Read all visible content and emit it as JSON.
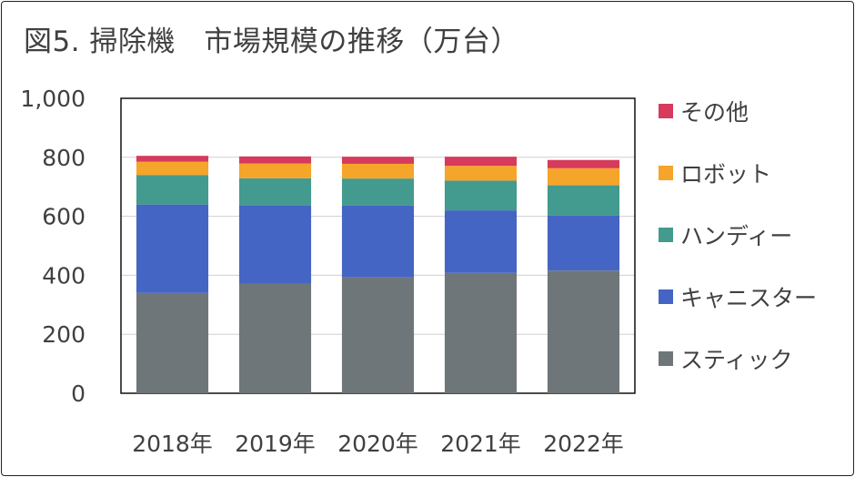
{
  "title": "図5. 掃除機　市場規模の推移（万台）",
  "chart_data": {
    "type": "bar",
    "stacked": true,
    "title": "図5. 掃除機　市場規模の推移（万台）",
    "categories": [
      "2018年",
      "2019年",
      "2020年",
      "2021年",
      "2022年"
    ],
    "y_ticks": [
      "0",
      "200",
      "400",
      "600",
      "800",
      "1,000"
    ],
    "ylim": [
      0,
      1000
    ],
    "grid": true,
    "legend_position": "right",
    "series": [
      {
        "name": "スティック",
        "color": "#6f7679",
        "values": [
          340,
          372,
          393,
          408,
          416
        ]
      },
      {
        "name": "キャニスター",
        "color": "#4565c4",
        "values": [
          300,
          265,
          243,
          212,
          187
        ]
      },
      {
        "name": "ハンディー",
        "color": "#439a8e",
        "values": [
          100,
          92,
          92,
          101,
          102
        ]
      },
      {
        "name": "ロボット",
        "color": "#f5a529",
        "values": [
          45,
          50,
          50,
          50,
          58
        ]
      },
      {
        "name": "その他",
        "color": "#d63a5d",
        "values": [
          20,
          24,
          24,
          31,
          28
        ]
      }
    ]
  }
}
